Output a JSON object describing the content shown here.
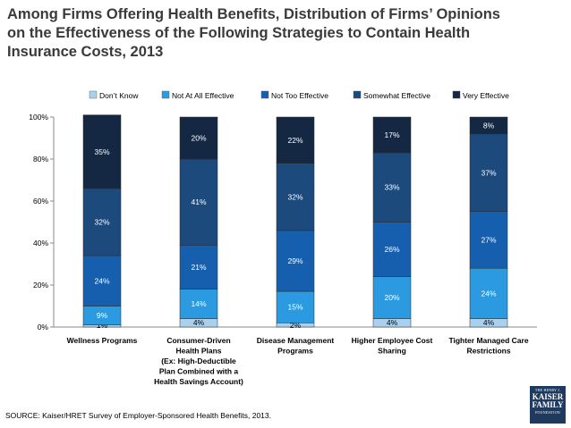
{
  "title": "Among Firms Offering Health Benefits, Distribution of Firms’ Opinions\non the Effectiveness of the Following Strategies to Contain Health\nInsurance Costs, 2013",
  "source": "SOURCE: Kaiser/HRET Survey of Employer-Sponsored Health Benefits, 2013.",
  "logo": {
    "line1": "THE HENRY J.",
    "line2": "KAISER",
    "line3": "FAMILY",
    "line4": "FOUNDATION"
  },
  "colors": {
    "dont_know": "#a9d1ee",
    "not_at_all": "#2b9ae0",
    "not_too": "#155fae",
    "somewhat": "#1c4a7c",
    "very": "#142843"
  },
  "chart_data": {
    "type": "bar",
    "stacked": true,
    "ylim": [
      0,
      100
    ],
    "yticks": [
      "0%",
      "20%",
      "40%",
      "60%",
      "80%",
      "100%"
    ],
    "legend_position": "top",
    "grid": false,
    "categories": [
      [
        "Wellness Programs"
      ],
      [
        "Consumer-Driven",
        "Health Plans",
        "(Ex: High-Deductible",
        "Plan Combined with a",
        "Health Savings Account)"
      ],
      [
        "Disease Management",
        "Programs"
      ],
      [
        "Higher Employee Cost",
        "Sharing"
      ],
      [
        "Tighter Managed Care",
        "Restrictions"
      ]
    ],
    "series": [
      {
        "name": "Don’t Know",
        "color": "#a9d1ee",
        "values": [
          1,
          4,
          2,
          4,
          4
        ]
      },
      {
        "name": "Not At All Effective",
        "color": "#2b9ae0",
        "values": [
          9,
          14,
          15,
          20,
          24
        ]
      },
      {
        "name": "Not Too Effective",
        "color": "#155fae",
        "values": [
          24,
          21,
          29,
          26,
          27
        ]
      },
      {
        "name": "Somewhat Effective",
        "color": "#1c4a7c",
        "values": [
          32,
          41,
          32,
          33,
          37
        ]
      },
      {
        "name": "Very Effective",
        "color": "#142843",
        "values": [
          35,
          20,
          22,
          17,
          8
        ]
      }
    ]
  }
}
